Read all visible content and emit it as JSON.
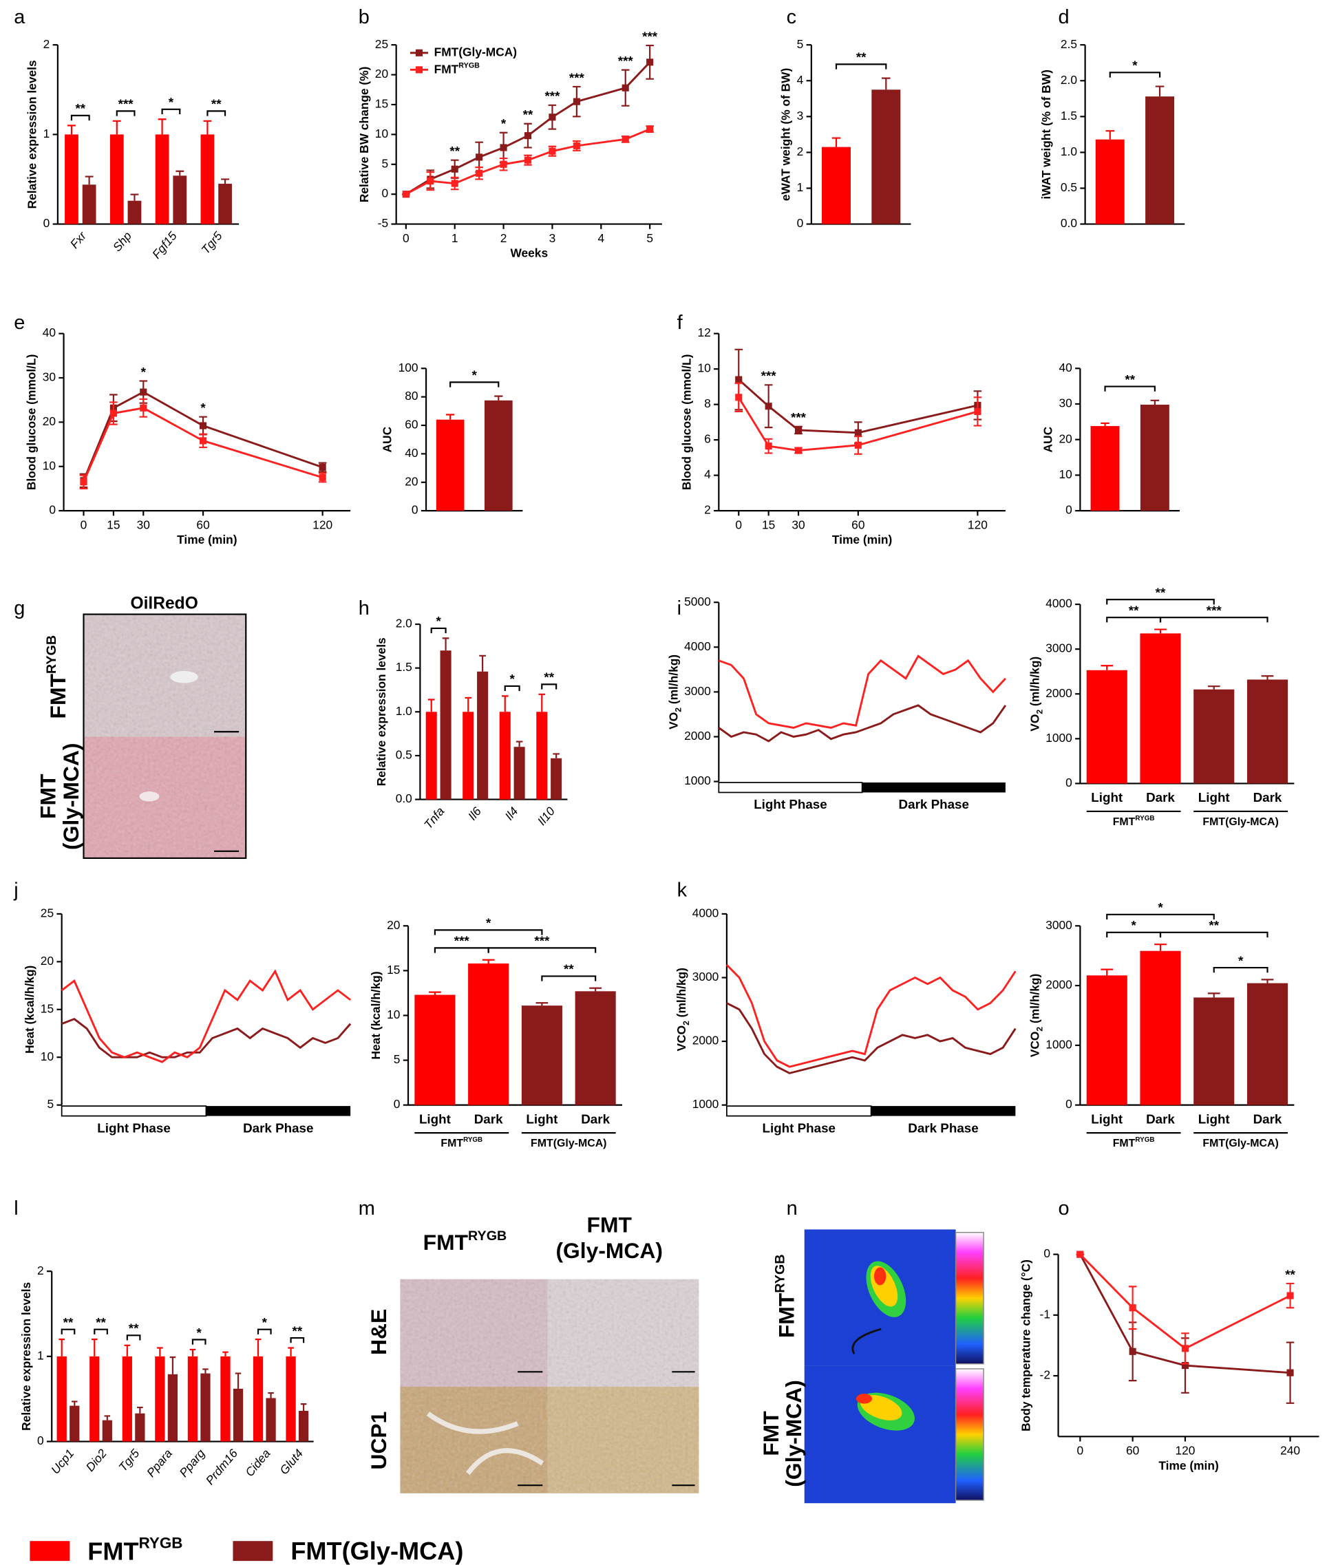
{
  "chart_data": [
    {
      "label": "a",
      "type": "bar",
      "ylabel": "Relative expression levels",
      "categories": [
        "Fxr",
        "Shp",
        "Fgf15",
        "Tgr5"
      ],
      "series": [
        {
          "color": "#ff0000",
          "values": [
            1,
            1,
            1,
            1
          ],
          "errors": [
            0.1,
            0.15,
            0.17,
            0.15
          ]
        },
        {
          "color": "#8b1a1a",
          "values": [
            0.44,
            0.26,
            0.54,
            0.45
          ],
          "errors": [
            0.09,
            0.07,
            0.05,
            0.05
          ]
        }
      ],
      "significance": [
        "**",
        "***",
        "*",
        "**"
      ],
      "ylim": [
        0,
        2
      ],
      "yticks": [
        0,
        1,
        2
      ]
    },
    {
      "label": "b",
      "type": "line",
      "xlabel": "Weeks",
      "ylabel": "Relative BW change (%)",
      "legend": "upper left",
      "x": [
        0,
        0.5,
        1,
        1.5,
        2,
        2.5,
        3,
        3.5,
        4.5,
        5
      ],
      "xlim": [
        -0.2,
        5.25
      ],
      "xticks": [
        0,
        1,
        2,
        3,
        4,
        5
      ],
      "ylim": [
        -5,
        25
      ],
      "yticks": [
        -5,
        0,
        5,
        10,
        15,
        20,
        25
      ],
      "series": [
        {
          "name": "FMT(Gly-MCA)",
          "color": "#8b1a1a",
          "values": [
            0,
            2.5,
            4.2,
            6.2,
            7.8,
            9.8,
            12.9,
            15.5,
            17.8,
            22.1
          ],
          "errors": [
            0,
            1.5,
            1.5,
            2.5,
            2.5,
            2,
            2,
            2.5,
            3,
            2.8
          ]
        },
        {
          "name": {
            "text": "FMT",
            "sup": "RYGB"
          },
          "color": "#ff2020",
          "values": [
            0,
            2.2,
            1.8,
            3.5,
            5,
            5.7,
            7.2,
            8.1,
            9.2,
            10.9
          ],
          "errors": [
            0,
            1.5,
            1,
            1,
            1,
            0.8,
            0.8,
            0.8,
            0.5,
            0.5
          ]
        }
      ],
      "annotations": [
        {
          "x": 1,
          "text": "**"
        },
        {
          "x": 2,
          "text": "*"
        },
        {
          "x": 2.5,
          "text": "**"
        },
        {
          "x": 3,
          "text": "***"
        },
        {
          "x": 3.5,
          "text": "***"
        },
        {
          "x": 4.5,
          "text": "***"
        },
        {
          "x": 5,
          "text": "***"
        }
      ]
    },
    {
      "label": "c",
      "type": "bar",
      "ylabel": "eWAT weight (% of BW)",
      "values": [
        2.15,
        3.75
      ],
      "errors": [
        0.25,
        0.32
      ],
      "colors": [
        "#ff0000",
        "#8b1a1a"
      ],
      "significance": "**",
      "ylim": [
        0,
        5
      ],
      "yticks": [
        0,
        1,
        2,
        3,
        4,
        5
      ]
    },
    {
      "label": "d",
      "type": "bar",
      "ylabel": "iWAT weight (% of BW)",
      "values": [
        1.18,
        1.78
      ],
      "errors": [
        0.12,
        0.14
      ],
      "colors": [
        "#ff0000",
        "#8b1a1a"
      ],
      "significance": "*",
      "ylim": [
        0,
        2.5
      ],
      "yticks": [
        {
          "value": 0,
          "label": "0.0"
        },
        0.5,
        {
          "value": 1,
          "label": "1.0"
        },
        1.5,
        {
          "value": 2,
          "label": "2.0"
        },
        2.5
      ]
    },
    {
      "label": "e",
      "type": "line",
      "xlabel": "Time (min)",
      "ylabel": "Blood glucose (mmol/L)",
      "x": [
        0,
        15,
        30,
        60,
        120
      ],
      "xlim": [
        -10,
        134
      ],
      "xticks": [
        0,
        15,
        30,
        60,
        120
      ],
      "ylim": [
        0,
        40
      ],
      "yticks": [
        0,
        10,
        20,
        30,
        40
      ],
      "series": [
        {
          "color": "#8b1a1a",
          "values": [
            6.8,
            23.2,
            26.8,
            19.2,
            9.8
          ],
          "errors": [
            1.5,
            3,
            2.5,
            2,
            1
          ]
        },
        {
          "color": "#ff2020",
          "values": [
            6.5,
            22,
            23.2,
            15.8,
            7.5
          ],
          "errors": [
            1.5,
            2.5,
            2,
            1.5,
            1
          ]
        }
      ],
      "annotations": [
        {
          "x": 30,
          "text": "*"
        },
        {
          "x": 60,
          "text": "*"
        }
      ]
    },
    {
      "type": "bar",
      "ylabel": "AUC",
      "values": [
        64,
        77.5
      ],
      "errors": [
        3.5,
        3
      ],
      "colors": [
        "#ff0000",
        "#8b1a1a"
      ],
      "significance": "*",
      "ylim": [
        0,
        100
      ],
      "yticks": [
        0,
        20,
        40,
        60,
        80,
        100
      ]
    },
    {
      "label": "f",
      "type": "line",
      "xlabel": "Time (min)",
      "ylabel": "Blood glucose (mmol/L)",
      "x": [
        0,
        15,
        30,
        60,
        120
      ],
      "xlim": [
        -10,
        134
      ],
      "xticks": [
        0,
        15,
        30,
        60,
        120
      ],
      "ylim": [
        2,
        12
      ],
      "yticks": [
        2,
        4,
        6,
        8,
        10,
        12
      ],
      "series": [
        {
          "color": "#8b1a1a",
          "values": [
            9.4,
            7.9,
            6.55,
            6.4,
            7.95
          ],
          "errors": [
            1.7,
            1.2,
            0.2,
            0.6,
            0.8
          ]
        },
        {
          "color": "#ff2020",
          "values": [
            8.4,
            5.65,
            5.4,
            5.7,
            7.6
          ],
          "errors": [
            0.8,
            0.4,
            0.15,
            0.5,
            0.8
          ]
        }
      ],
      "annotations": [
        {
          "x": 15,
          "text": "***"
        },
        {
          "x": 30,
          "text": "***"
        }
      ]
    },
    {
      "type": "bar",
      "ylabel": "AUC",
      "values": [
        23.8,
        29.8
      ],
      "errors": [
        0.8,
        1.2
      ],
      "colors": [
        "#ff0000",
        "#8b1a1a"
      ],
      "significance": "**",
      "ylim": [
        0,
        40
      ],
      "yticks": [
        0,
        10,
        20,
        30,
        40
      ]
    },
    {
      "label": "h",
      "type": "bar",
      "ylabel": "Relative expression levels",
      "categories": [
        "Tnfa",
        "Il6",
        "Il4",
        "Il10"
      ],
      "series": [
        {
          "color": "#ff0000",
          "values": [
            1,
            1,
            1,
            1
          ],
          "errors": [
            0.14,
            0.16,
            0.18,
            0.2
          ]
        },
        {
          "color": "#8b1a1a",
          "values": [
            1.7,
            1.46,
            0.6,
            0.47
          ],
          "errors": [
            0.14,
            0.18,
            0.06,
            0.05
          ]
        }
      ],
      "significance": [
        "*",
        null,
        "*",
        "**"
      ],
      "ylim": [
        0,
        2
      ],
      "yticks": [
        {
          "value": 0,
          "label": "0.0"
        },
        0.5,
        {
          "value": 1,
          "label": "1.0"
        },
        1.5,
        {
          "value": 2,
          "label": "2.0"
        }
      ]
    },
    {
      "label": "i",
      "type": "line",
      "ylabel": {
        "text": "VO",
        "sub": "2",
        "after": " (ml/h/kg)"
      },
      "phases": [
        "Light Phase",
        "Dark Phase"
      ],
      "ylim": [
        1000,
        5000
      ],
      "yticks": [
        1000,
        2000,
        3000,
        4000,
        5000
      ],
      "series": [
        {
          "color": "#8b1a1a",
          "values": [
            2200,
            2000,
            2100,
            2050,
            1900,
            2100,
            2000,
            2050,
            2150,
            1950,
            2050,
            2100,
            2200,
            2300,
            2500,
            2600,
            2700,
            2500,
            2400,
            2300,
            2200,
            2100,
            2300,
            2700
          ]
        },
        {
          "color": "#ff2020",
          "values": [
            3700,
            3600,
            3300,
            2500,
            2300,
            2250,
            2200,
            2300,
            2250,
            2200,
            2300,
            2250,
            3400,
            3700,
            3500,
            3300,
            3800,
            3600,
            3400,
            3500,
            3700,
            3300,
            3000,
            3300
          ]
        }
      ]
    },
    {
      "type": "bar",
      "ylabel": {
        "text": "VO",
        "sub": "2",
        "after": " (ml/h/kg)"
      },
      "categories": [
        "Light",
        "Dark",
        "Light",
        "Dark"
      ],
      "groups": [
        {
          "text": "FMT",
          "sup": "RYGB"
        },
        "FMT(Gly-MCA)"
      ],
      "values": [
        2530,
        3350,
        2100,
        2320
      ],
      "errors": [
        100,
        90,
        70,
        80
      ],
      "colors": [
        "#ff0000",
        "#ff0000",
        "#8b1a1a",
        "#8b1a1a"
      ],
      "comparisons": [
        {
          "pair": [
            0,
            2
          ],
          "text": "**"
        },
        {
          "pair": [
            0,
            1
          ],
          "text": "**"
        },
        {
          "pair": [
            1,
            3
          ],
          "text": "***"
        }
      ],
      "ylim": [
        0,
        4000
      ],
      "yticks": [
        0,
        1000,
        2000,
        3000,
        4000
      ]
    },
    {
      "label": "j",
      "type": "line",
      "ylabel": "Heat (kcal/h/kg)",
      "phases": [
        "Light Phase",
        "Dark Phase"
      ],
      "ylim": [
        5,
        25
      ],
      "yticks": [
        5,
        10,
        15,
        20,
        25
      ],
      "series": [
        {
          "color": "#8b1a1a",
          "values": [
            13.5,
            14,
            13,
            11,
            10,
            10,
            10,
            10.5,
            10,
            10,
            10.5,
            10.5,
            12,
            12.5,
            13,
            12,
            13,
            12.5,
            12,
            11,
            12,
            11.5,
            12,
            13.5
          ]
        },
        {
          "color": "#ff2020",
          "values": [
            17,
            18,
            15,
            12,
            10.5,
            10,
            10.5,
            10,
            9.5,
            10.5,
            10,
            11,
            14,
            17,
            16,
            18,
            17,
            19,
            16,
            17,
            15,
            16,
            17,
            16
          ]
        }
      ]
    },
    {
      "type": "bar",
      "ylabel": "Heat (kcal/h/kg)",
      "categories": [
        "Light",
        "Dark",
        "Light",
        "Dark"
      ],
      "groups": [
        {
          "text": "FMT",
          "sup": "RYGB"
        },
        "FMT(Gly-MCA)"
      ],
      "values": [
        12.3,
        15.8,
        11.1,
        12.7
      ],
      "errors": [
        0.3,
        0.4,
        0.3,
        0.35
      ],
      "colors": [
        "#ff0000",
        "#ff0000",
        "#8b1a1a",
        "#8b1a1a"
      ],
      "comparisons": [
        {
          "pair": [
            0,
            2
          ],
          "text": "*"
        },
        {
          "pair": [
            0,
            1
          ],
          "text": "***"
        },
        {
          "pair": [
            1,
            3
          ],
          "text": "***"
        },
        {
          "pair": [
            2,
            3
          ],
          "text": "**"
        }
      ],
      "ylim": [
        0,
        20
      ],
      "yticks": [
        0,
        5,
        10,
        15,
        20
      ]
    },
    {
      "label": "k",
      "type": "line",
      "ylabel": {
        "text": "VCO",
        "sub": "2",
        "after": " (ml/h/kg)"
      },
      "phases": [
        "Light Phase",
        "Dark Phase"
      ],
      "ylim": [
        1000,
        4000
      ],
      "yticks": [
        1000,
        2000,
        3000,
        4000
      ],
      "series": [
        {
          "color": "#8b1a1a",
          "values": [
            2600,
            2500,
            2200,
            1800,
            1600,
            1500,
            1550,
            1600,
            1650,
            1700,
            1750,
            1700,
            1900,
            2000,
            2100,
            2050,
            2100,
            2000,
            2050,
            1900,
            1850,
            1800,
            1900,
            2200
          ]
        },
        {
          "color": "#ff2020",
          "values": [
            3200,
            3000,
            2600,
            2000,
            1700,
            1600,
            1650,
            1700,
            1750,
            1800,
            1850,
            1800,
            2500,
            2800,
            2900,
            3000,
            2900,
            3000,
            2800,
            2700,
            2500,
            2600,
            2800,
            3100
          ]
        }
      ]
    },
    {
      "type": "bar",
      "ylabel": {
        "text": "VCO",
        "sub": "2",
        "after": " (ml/h/kg)"
      },
      "categories": [
        "Light",
        "Dark",
        "Light",
        "Dark"
      ],
      "groups": [
        {
          "text": "FMT",
          "sup": "RYGB"
        },
        "FMT(Gly-MCA)"
      ],
      "values": [
        2170,
        2580,
        1800,
        2040
      ],
      "errors": [
        100,
        110,
        70,
        60
      ],
      "colors": [
        "#ff0000",
        "#ff0000",
        "#8b1a1a",
        "#8b1a1a"
      ],
      "comparisons": [
        {
          "pair": [
            0,
            2
          ],
          "text": "*"
        },
        {
          "pair": [
            0,
            1
          ],
          "text": "*"
        },
        {
          "pair": [
            1,
            3
          ],
          "text": "**"
        },
        {
          "pair": [
            2,
            3
          ],
          "text": "*"
        }
      ],
      "ylim": [
        0,
        3000
      ],
      "yticks": [
        0,
        1000,
        2000,
        3000
      ]
    },
    {
      "label": "l",
      "type": "bar",
      "ylabel": "Relative expression levels",
      "categories": [
        "Ucp1",
        "Dio2",
        "Tgr5",
        "Ppara",
        "Pparg",
        "Prdm16",
        "Cidea",
        "Glut4"
      ],
      "series": [
        {
          "color": "#ff0000",
          "values": [
            1,
            1,
            1,
            1,
            1,
            1,
            1,
            1
          ],
          "errors": [
            0.2,
            0.2,
            0.13,
            0.1,
            0.08,
            0.05,
            0.2,
            0.1
          ]
        },
        {
          "color": "#8b1a1a",
          "values": [
            0.42,
            0.25,
            0.33,
            0.79,
            0.8,
            0.62,
            0.51,
            0.36
          ],
          "errors": [
            0.05,
            0.05,
            0.07,
            0.2,
            0.05,
            0.18,
            0.06,
            0.08
          ]
        }
      ],
      "significance": [
        "**",
        "**",
        "**",
        null,
        "*",
        null,
        "*",
        "**"
      ],
      "ylim": [
        0,
        2
      ],
      "yticks": [
        0,
        1,
        2
      ]
    },
    {
      "label": "o",
      "type": "line",
      "xlabel": "Time (min)",
      "ylabel": "Body temperature change (°C)",
      "x": [
        0,
        60,
        120,
        240
      ],
      "xlim": [
        -25,
        273
      ],
      "xticks": [
        0,
        60,
        120,
        240
      ],
      "ylim": [
        -3,
        0
      ],
      "yticks": [
        -2,
        -1,
        0
      ],
      "series": [
        {
          "color": "#8b1a1a",
          "values": [
            0,
            -1.6,
            -1.83,
            -1.95
          ],
          "errors": [
            0,
            0.48,
            0.45,
            0.5
          ]
        },
        {
          "color": "#ff2020",
          "values": [
            0,
            -0.88,
            -1.55,
            -0.68
          ],
          "errors": [
            0,
            0.35,
            0.25,
            0.2
          ]
        }
      ],
      "annotations": [
        {
          "x": 240,
          "text": "**"
        }
      ]
    }
  ],
  "images": [
    {
      "label": "g",
      "title": "OilRedO",
      "rows": [
        {
          "text": "FMT",
          "sup": "RYGB"
        },
        [
          "FMT",
          "(Gly-MCA)"
        ]
      ]
    },
    {
      "label": "m",
      "columns": [
        {
          "text": "FMT",
          "sup": "RYGB"
        },
        [
          "FMT",
          "(Gly-MCA)"
        ]
      ],
      "rows": [
        "H&E",
        "UCP1"
      ]
    },
    {
      "label": "n",
      "rows": [
        {
          "text": "FMT",
          "sup": "RYGB"
        },
        [
          "FMT",
          "(Gly-MCA)"
        ]
      ]
    }
  ],
  "legend": [
    {
      "name": {
        "text": "FMT",
        "sup": "RYGB"
      },
      "color": "#ff0000"
    },
    {
      "name": "FMT(Gly-MCA)",
      "color": "#8b1a1a"
    }
  ]
}
